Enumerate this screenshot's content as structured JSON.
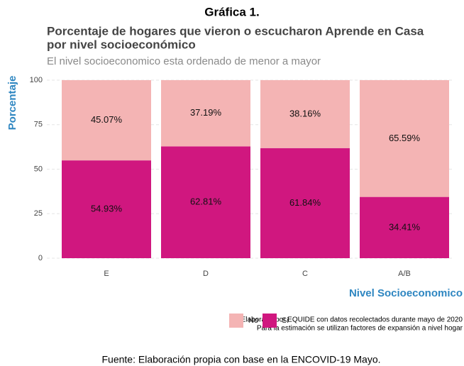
{
  "header": "Gráfica 1.",
  "footer": "Fuente: Elaboración propia con base en la ENCOVID-19 Mayo.",
  "chart_data": {
    "type": "stacked_bar",
    "title": [
      "Porcentaje de hogares que vieron o escucharon Aprende en Casa",
      "por nivel socioeconómico"
    ],
    "subtitle": "El nivel socioeconomico esta ordenado de menor a mayor",
    "y_label": "Porcentaje",
    "x_label": "Nivel Socioeconomico",
    "caption": [
      "Elaborada por EQUIDE con datos recolectados durante mayo de 2020",
      "Para la estimación se utilizan factores de expansión a nivel hogar"
    ],
    "categories": [
      "E",
      "D",
      "C",
      "A/B"
    ],
    "series": [
      {
        "name": "Si",
        "color": "#d0177f",
        "values": [
          54.93,
          62.81,
          61.84,
          34.41
        ],
        "value_labels": [
          "54.93%",
          "62.81%",
          "61.84%",
          "34.41%"
        ]
      },
      {
        "name": "No",
        "color": "#f4b4b4",
        "values": [
          45.07,
          37.19,
          38.16,
          65.59
        ],
        "value_labels": [
          "45.07%",
          "37.19%",
          "38.16%",
          "65.59%"
        ]
      }
    ],
    "ylim": [
      0,
      100
    ],
    "yticks": [
      0,
      25,
      50,
      75,
      100
    ],
    "grid": true
  }
}
